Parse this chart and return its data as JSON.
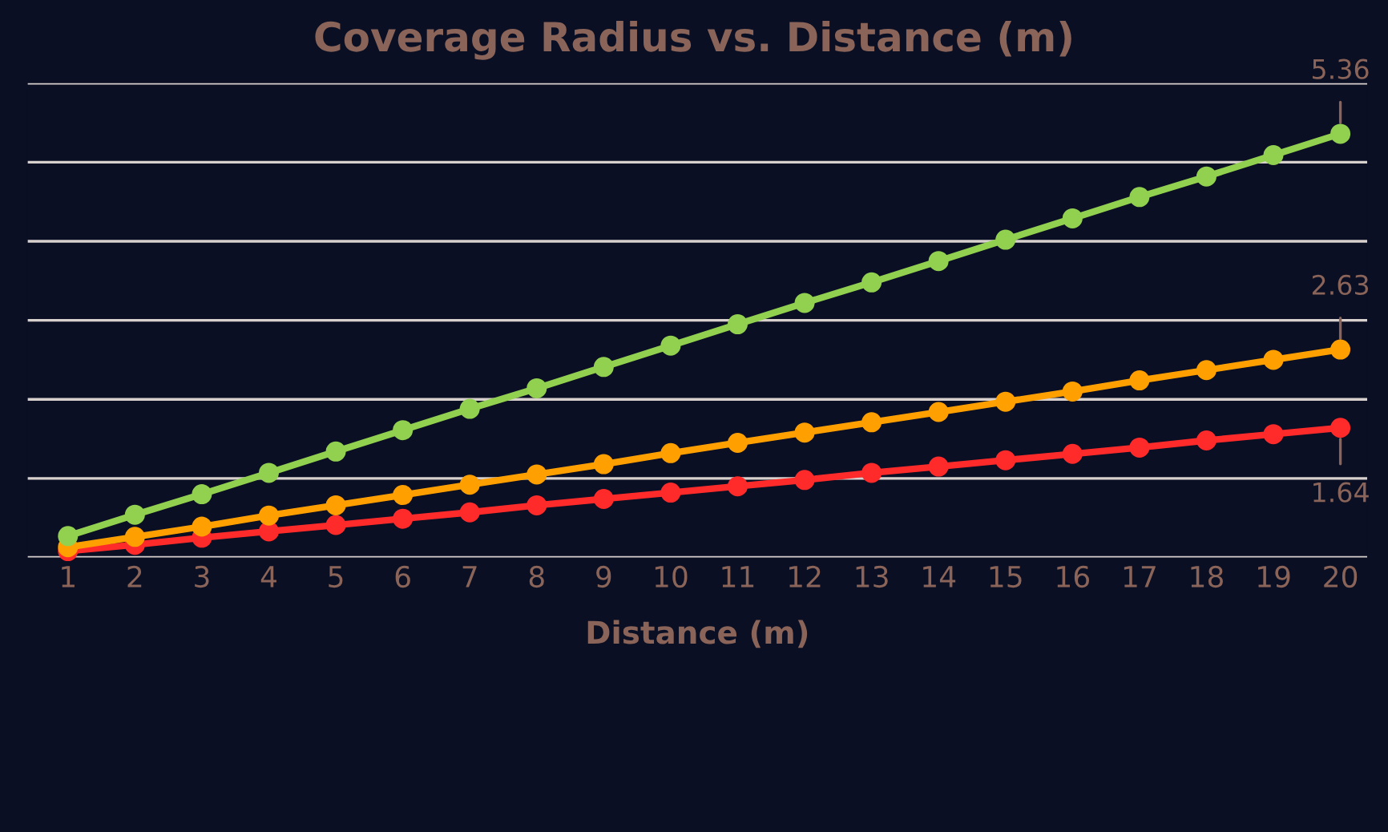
{
  "chart_data": {
    "type": "line",
    "title": "Coverage Radius vs. Distance (m)",
    "xlabel": "Distance (m)",
    "categories": [
      "1",
      "2",
      "3",
      "4",
      "5",
      "6",
      "7",
      "8",
      "9",
      "10",
      "11",
      "12",
      "13",
      "14",
      "15",
      "16",
      "17",
      "18",
      "19",
      "20"
    ],
    "series": [
      {
        "color": "#ff2a2a",
        "values": [
          0.08,
          0.16,
          0.25,
          0.33,
          0.41,
          0.49,
          0.57,
          0.66,
          0.74,
          0.82,
          0.9,
          0.98,
          1.07,
          1.15,
          1.23,
          1.31,
          1.39,
          1.48,
          1.56,
          1.64
        ],
        "value_labels": [
          null,
          null,
          null,
          null,
          null,
          null,
          null,
          null,
          null,
          null,
          null,
          null,
          null,
          null,
          null,
          null,
          null,
          null,
          null,
          "1.64"
        ]
      },
      {
        "color": "#ffa000",
        "values": [
          0.13,
          0.26,
          0.39,
          0.53,
          0.66,
          0.79,
          0.92,
          1.05,
          1.18,
          1.32,
          1.45,
          1.58,
          1.71,
          1.84,
          1.97,
          2.1,
          2.24,
          2.37,
          2.5,
          2.63
        ],
        "value_labels": [
          null,
          null,
          null,
          null,
          null,
          null,
          null,
          null,
          null,
          null,
          null,
          null,
          null,
          null,
          null,
          null,
          null,
          null,
          null,
          "2.63"
        ]
      },
      {
        "color": "#92d050",
        "values": [
          0.27,
          0.54,
          0.8,
          1.07,
          1.34,
          1.61,
          1.88,
          2.14,
          2.41,
          2.68,
          2.95,
          3.22,
          3.48,
          3.75,
          4.02,
          4.29,
          4.56,
          4.82,
          5.09,
          5.36
        ],
        "value_labels": [
          null,
          null,
          null,
          null,
          null,
          null,
          null,
          null,
          null,
          null,
          null,
          null,
          null,
          null,
          null,
          null,
          null,
          null,
          null,
          "5.36"
        ]
      }
    ],
    "ylim": [
      0,
      6
    ],
    "yticks": [
      {
        "value": 0,
        "label": null
      },
      {
        "value": 1,
        "label": null
      },
      {
        "value": 2,
        "label": null
      },
      {
        "value": 3,
        "label": null
      },
      {
        "value": 4,
        "label": null
      },
      {
        "value": 5,
        "label": null
      },
      {
        "value": 6,
        "label": null
      }
    ],
    "tick_labels": "x",
    "grid": "y",
    "marker": "circle",
    "line_style": "solid"
  }
}
